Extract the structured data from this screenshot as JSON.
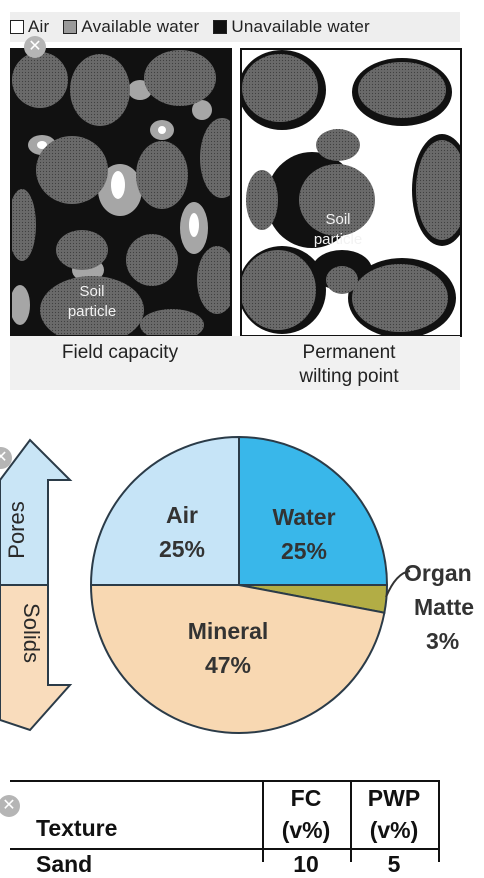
{
  "legend": {
    "air": "Air",
    "available": "Available water",
    "unavailable": "Unavailable water"
  },
  "panels": {
    "left_caption": "Field capacity",
    "right_caption_line1": "Permanent",
    "right_caption_line2": "wilting point",
    "soil_label_line1": "Soil",
    "soil_label_line2": "particle"
  },
  "pie": {
    "arrow_top": "Pores",
    "arrow_bottom": "Solids",
    "slices": [
      {
        "name": "Air",
        "pct": "25%",
        "color": "#c6e4f7"
      },
      {
        "name": "Water",
        "pct": "25%",
        "color": "#39b7ea"
      },
      {
        "name": "Organic Matter",
        "pct": "3%",
        "color": "#b2ad45"
      },
      {
        "name": "Mineral",
        "pct": "47%",
        "color": "#f8d8b2"
      }
    ],
    "organic_line1": "Organ",
    "organic_line2": "Matte",
    "organic_pct": "3%"
  },
  "chart_data": {
    "type": "pie",
    "categories": [
      "Air",
      "Water",
      "Organic Matter",
      "Mineral"
    ],
    "values": [
      25,
      25,
      3,
      47
    ]
  },
  "table": {
    "col_texture": "Texture",
    "col_fc_line1": "FC",
    "col_fc_line2": "(v%)",
    "col_pwp_line1": "PWP",
    "col_pwp_line2": "(v%)",
    "row1_texture": "Sand",
    "row1_fc": "10",
    "row1_pwp": "5"
  },
  "close_glyph": "✕"
}
